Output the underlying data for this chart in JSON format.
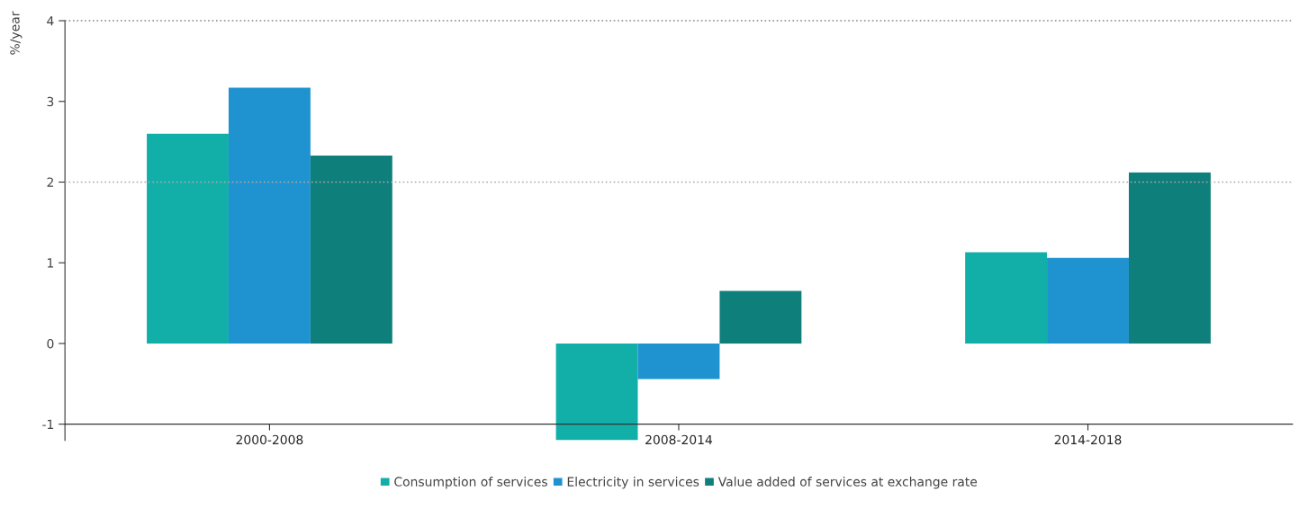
{
  "chart_data": {
    "type": "bar",
    "ylabel": "%/year",
    "categories": [
      "2000-2008",
      "2008-2014",
      "2014-2018"
    ],
    "series": [
      {
        "name": "Consumption of services",
        "color": "#12afa9",
        "values": [
          2.6,
          -1.2,
          1.13
        ]
      },
      {
        "name": "Electricity in services",
        "color": "#1f93d0",
        "values": [
          3.17,
          -0.44,
          1.06
        ]
      },
      {
        "name": "Value added of services at exchange rate",
        "color": "#0e7f7a",
        "values": [
          2.33,
          0.65,
          2.12
        ]
      }
    ],
    "ylim": [
      -1.2,
      4
    ],
    "yticks": [
      -1,
      0,
      1,
      2,
      3,
      4
    ],
    "ref_lines": [
      {
        "axis": "y",
        "value": 2,
        "color": "#aaaaaa",
        "line_style": "dotted"
      },
      {
        "axis": "y",
        "value": 4,
        "color": "#888888",
        "line_style": "dotted"
      }
    ],
    "grid": false,
    "legend": "bottom"
  }
}
